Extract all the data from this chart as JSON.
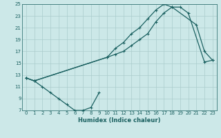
{
  "title": "",
  "xlabel": "Humidex (Indice chaleur)",
  "bg_color": "#cce8e8",
  "grid_color": "#aacccc",
  "line_color": "#1a6060",
  "xlim": [
    -0.5,
    23.5
  ],
  "ylim": [
    7,
    25
  ],
  "xticks": [
    0,
    1,
    2,
    3,
    4,
    5,
    6,
    7,
    8,
    9,
    10,
    11,
    12,
    13,
    14,
    15,
    16,
    17,
    18,
    19,
    20,
    21,
    22,
    23
  ],
  "yticks": [
    7,
    9,
    11,
    13,
    15,
    17,
    19,
    21,
    23,
    25
  ],
  "s1x": [
    0,
    1,
    2,
    3,
    4,
    5,
    6,
    7,
    8,
    9
  ],
  "s1y": [
    12.5,
    12.0,
    11.0,
    10.0,
    9.0,
    8.0,
    7.0,
    7.0,
    7.5,
    10.0
  ],
  "s2x": [
    0,
    1,
    10,
    11,
    12,
    13,
    14,
    15,
    16,
    17,
    18,
    19,
    20,
    22,
    23
  ],
  "s2y": [
    12.5,
    12.0,
    16.0,
    16.5,
    17.0,
    18.0,
    19.0,
    20.0,
    22.0,
    23.5,
    24.5,
    24.5,
    23.5,
    15.2,
    15.5
  ],
  "s3x": [
    0,
    1,
    10,
    11,
    12,
    13,
    14,
    15,
    16,
    17,
    18,
    21,
    22,
    23
  ],
  "s3y": [
    12.5,
    12.0,
    16.0,
    17.5,
    18.5,
    20.0,
    21.0,
    22.5,
    24.0,
    25.0,
    24.5,
    21.5,
    17.0,
    15.5
  ],
  "tick_fontsize": 5.0,
  "xlabel_fontsize": 6.0,
  "linewidth": 0.9,
  "markersize": 3.5
}
